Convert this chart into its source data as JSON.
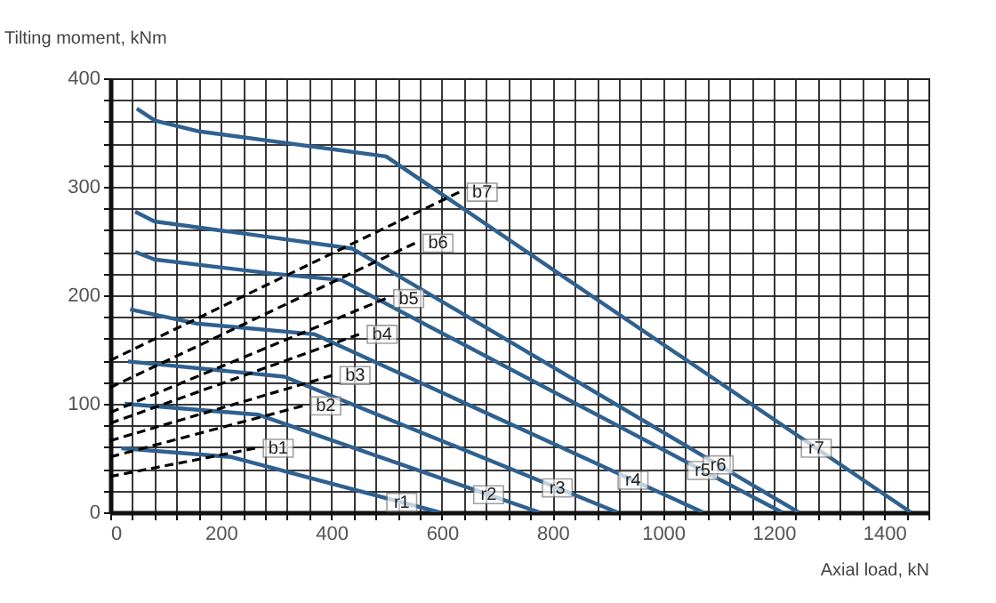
{
  "chart_data": {
    "type": "line",
    "xlabel": "Axial load, kN",
    "ylabel": "Tilting moment, kNm",
    "xlim": [
      0,
      1480
    ],
    "ylim": [
      0,
      400
    ],
    "xticks": [
      0,
      {
        "value": 40,
        "label": null
      },
      {
        "value": 80,
        "label": null
      },
      {
        "value": 120,
        "label": null
      },
      {
        "value": 160,
        "label": null
      },
      200,
      {
        "value": 240,
        "label": null
      },
      {
        "value": 280,
        "label": null
      },
      {
        "value": 320,
        "label": null
      },
      {
        "value": 360,
        "label": null
      },
      400,
      {
        "value": 440,
        "label": null
      },
      {
        "value": 480,
        "label": null
      },
      {
        "value": 520,
        "label": null
      },
      {
        "value": 560,
        "label": null
      },
      600,
      {
        "value": 640,
        "label": null
      },
      {
        "value": 680,
        "label": null
      },
      {
        "value": 720,
        "label": null
      },
      {
        "value": 760,
        "label": null
      },
      800,
      {
        "value": 840,
        "label": null
      },
      {
        "value": 880,
        "label": null
      },
      {
        "value": 920,
        "label": null
      },
      {
        "value": 960,
        "label": null
      },
      1000,
      {
        "value": 1040,
        "label": null
      },
      {
        "value": 1080,
        "label": null
      },
      {
        "value": 1120,
        "label": null
      },
      {
        "value": 1160,
        "label": null
      },
      1200,
      {
        "value": 1240,
        "label": null
      },
      {
        "value": 1280,
        "label": null
      },
      {
        "value": 1320,
        "label": null
      },
      {
        "value": 1360,
        "label": null
      },
      1400,
      {
        "value": 1440,
        "label": null
      },
      {
        "value": 1480,
        "label": null
      }
    ],
    "yticks": [
      0,
      {
        "value": 20,
        "label": null
      },
      {
        "value": 40,
        "label": null
      },
      {
        "value": 60,
        "label": null
      },
      {
        "value": 80,
        "label": null
      },
      100,
      {
        "value": 120,
        "label": null
      },
      {
        "value": 140,
        "label": null
      },
      {
        "value": 160,
        "label": null
      },
      {
        "value": 180,
        "label": null
      },
      200,
      {
        "value": 220,
        "label": null
      },
      {
        "value": 240,
        "label": null
      },
      {
        "value": 260,
        "label": null
      },
      {
        "value": 280,
        "label": null
      },
      300,
      {
        "value": 320,
        "label": null
      },
      {
        "value": 340,
        "label": null
      },
      {
        "value": 360,
        "label": null
      },
      {
        "value": 380,
        "label": null
      },
      400
    ],
    "grid": true,
    "marker": "none",
    "series": [
      {
        "name": "r1",
        "color": "#2f6190",
        "x": [
          20,
          219,
          595
        ],
        "values": [
          59,
          51,
          0
        ]
      },
      {
        "name": "r2",
        "color": "#2f6190",
        "x": [
          26,
          267,
          776
        ],
        "values": [
          100,
          90,
          0
        ]
      },
      {
        "name": "r3",
        "color": "#2f6190",
        "x": [
          32,
          315,
          917
        ],
        "values": [
          139,
          125,
          0
        ]
      },
      {
        "name": "r4",
        "color": "#2f6190",
        "x": [
          36,
          155,
          370,
          1072
        ],
        "values": [
          187,
          174,
          164,
          0
        ]
      },
      {
        "name": "r5",
        "color": "#2f6190",
        "x": [
          45,
          80,
          293,
          418,
          1215
        ],
        "values": [
          240,
          233,
          220,
          214,
          0
        ]
      },
      {
        "name": "r6",
        "color": "#2f6190",
        "x": [
          45,
          80,
          283,
          438,
          1245
        ],
        "values": [
          277,
          268,
          254,
          243,
          0
        ]
      },
      {
        "name": "r7",
        "color": "#2f6190",
        "x": [
          48,
          81,
          161,
          499,
          1448
        ],
        "values": [
          372,
          361,
          351,
          328,
          0
        ]
      },
      {
        "name": "b1",
        "color": "#000000",
        "line_style": "dashed",
        "x": [
          0,
          262
        ],
        "values": [
          33,
          59
        ]
      },
      {
        "name": "b2",
        "color": "#000000",
        "line_style": "dashed",
        "x": [
          0,
          348
        ],
        "values": [
          51,
          98
        ]
      },
      {
        "name": "b3",
        "color": "#000000",
        "line_style": "dashed",
        "x": [
          0,
          401
        ],
        "values": [
          66,
          126
        ]
      },
      {
        "name": "b4",
        "color": "#000000",
        "line_style": "dashed",
        "x": [
          0,
          450
        ],
        "values": [
          82,
          164
        ]
      },
      {
        "name": "b5",
        "color": "#000000",
        "line_style": "dashed",
        "x": [
          0,
          498
        ],
        "values": [
          92,
          197
        ]
      },
      {
        "name": "b6",
        "color": "#000000",
        "line_style": "dashed",
        "x": [
          0,
          551
        ],
        "values": [
          115,
          248
        ]
      },
      {
        "name": "b7",
        "color": "#000000",
        "line_style": "dashed",
        "x": [
          0,
          631
        ],
        "values": [
          140,
          295
        ]
      }
    ]
  }
}
